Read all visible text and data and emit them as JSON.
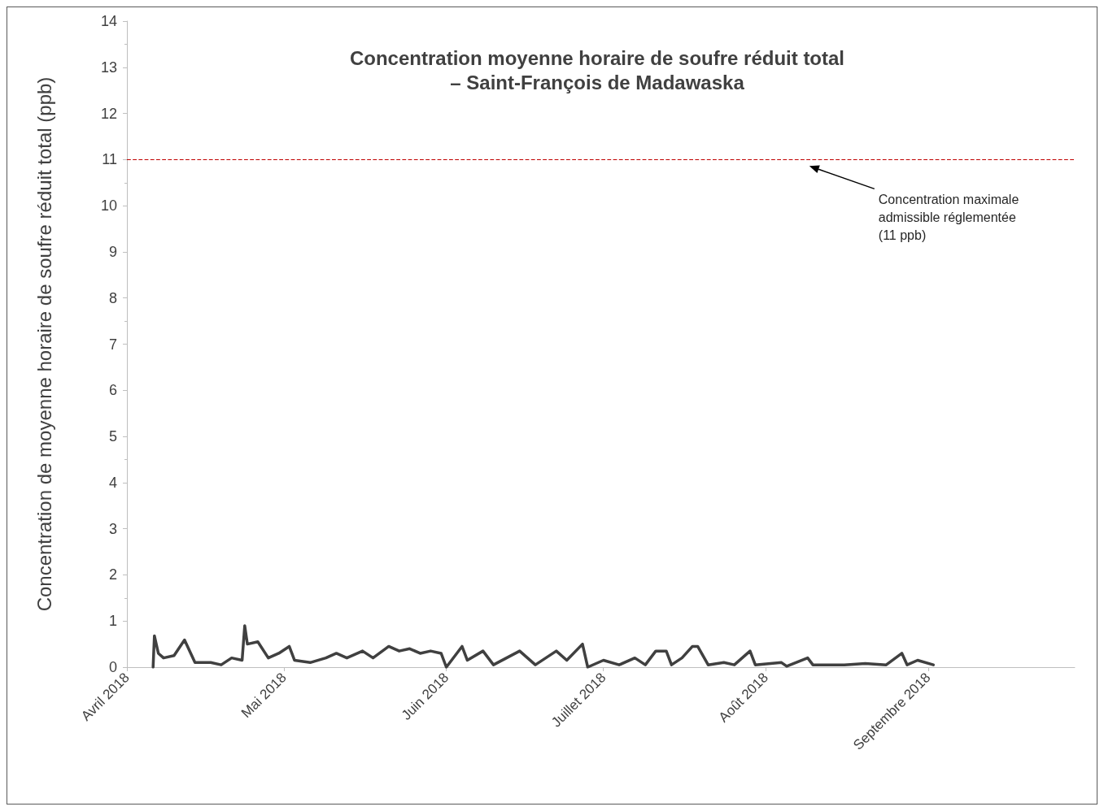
{
  "chart_data": {
    "type": "line",
    "title": "Concentration moyenne horaire de soufre réduit total\n– Saint-François de Madawaska",
    "ylabel": "Concentration de moyenne horaire de soufre réduit total (ppb)",
    "series": [
      {
        "color": "#404040",
        "x": [
          "2018-04-06",
          "2018-04-06T06:00",
          "2018-04-07",
          "2018-04-08",
          "2018-04-10",
          "2018-04-12",
          "2018-04-14",
          "2018-04-17",
          "2018-04-19",
          "2018-04-21",
          "2018-04-23",
          "2018-04-23T12:00",
          "2018-04-24",
          "2018-04-26",
          "2018-04-28",
          "2018-04-30",
          "2018-05-02",
          "2018-05-03",
          "2018-05-06",
          "2018-05-09",
          "2018-05-11",
          "2018-05-13",
          "2018-05-16",
          "2018-05-18",
          "2018-05-21",
          "2018-05-23",
          "2018-05-25",
          "2018-05-27",
          "2018-05-29",
          "2018-05-31",
          "2018-06-01",
          "2018-06-04",
          "2018-06-05",
          "2018-06-08",
          "2018-06-10",
          "2018-06-15",
          "2018-06-18",
          "2018-06-22",
          "2018-06-24",
          "2018-06-27",
          "2018-06-28",
          "2018-07-01",
          "2018-07-04",
          "2018-07-07",
          "2018-07-09",
          "2018-07-11",
          "2018-07-13",
          "2018-07-14",
          "2018-07-16",
          "2018-07-18",
          "2018-07-19",
          "2018-07-21",
          "2018-07-24",
          "2018-07-26",
          "2018-07-29",
          "2018-07-30",
          "2018-08-04",
          "2018-08-05",
          "2018-08-09",
          "2018-08-10",
          "2018-08-16",
          "2018-08-20",
          "2018-08-24",
          "2018-08-27",
          "2018-08-28",
          "2018-08-30",
          "2018-09-02"
        ],
        "values": [
          0,
          0.68,
          0.3,
          0.2,
          0.25,
          0.59,
          0.1,
          0.1,
          0.05,
          0.2,
          0.15,
          0.9,
          0.5,
          0.55,
          0.2,
          0.3,
          0.45,
          0.15,
          0.1,
          0.2,
          0.3,
          0.2,
          0.35,
          0.2,
          0.45,
          0.35,
          0.4,
          0.3,
          0.35,
          0.3,
          0,
          0.45,
          0.15,
          0.35,
          0.05,
          0.35,
          0.05,
          0.35,
          0.15,
          0.5,
          0,
          0.15,
          0.05,
          0.2,
          0.05,
          0.35,
          0.35,
          0.05,
          0.2,
          0.45,
          0.45,
          0.05,
          0.1,
          0.05,
          0.35,
          0.05,
          0.1,
          0.02,
          0.2,
          0.05,
          0.05,
          0.08,
          0.05,
          0.3,
          0.05,
          0.15,
          0.05
        ]
      }
    ],
    "xlim": [
      "2018-04-01",
      "2018-09-29"
    ],
    "xticks": [
      {
        "value": "2018-04-01",
        "label": "Avril 2018"
      },
      {
        "value": "2018-05-01",
        "label": "Mai 2018"
      },
      {
        "value": "2018-06-01",
        "label": "Juin 2018"
      },
      {
        "value": "2018-07-01",
        "label": "Juillet 2018"
      },
      {
        "value": "2018-08-01",
        "label": "Août 2018"
      },
      {
        "value": "2018-09-01",
        "label": "Septembre 2018"
      }
    ],
    "ylim": [
      0,
      14
    ],
    "yticks": [
      0,
      1,
      2,
      3,
      4,
      5,
      6,
      7,
      8,
      9,
      10,
      11,
      12,
      13,
      14
    ],
    "ref_lines": [
      {
        "axis": "y",
        "value": 11,
        "color": "#c00000",
        "line_style": "dashed"
      }
    ],
    "annotations": [
      "Concentration maximale\nadmissible réglementée\n(11 ppb)"
    ],
    "grid": false,
    "marker": "none",
    "line_style": "solid"
  }
}
